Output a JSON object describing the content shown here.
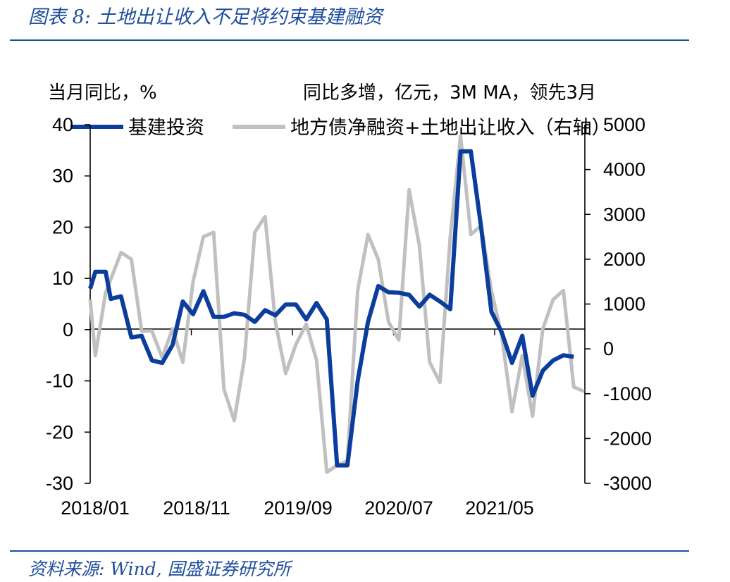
{
  "figure": {
    "title": "图表 8: 土地出让收入不足将约束基建融资",
    "source": "资料来源: Wind, 国盛证券研究所"
  },
  "colors": {
    "brand_blue": "#1f4e9a",
    "series_blue": "#0b3e9c",
    "series_gray": "#c0c0c0"
  },
  "chart_data": {
    "type": "line",
    "x_tick_labels": [
      "2018/01",
      "2018/11",
      "2019/09",
      "2020/07",
      "2021/05"
    ],
    "left_axis": {
      "label": "当月同比，%",
      "ylim": [
        -30,
        40
      ],
      "ticks": [
        "40",
        "30",
        "20",
        "10",
        "0",
        "-10",
        "-20",
        "-30"
      ]
    },
    "right_axis": {
      "label": "同比多增，亿元，3M MA，领先3月",
      "ylim": [
        -3000,
        5000
      ],
      "ticks": [
        "5000",
        "4000",
        "3000",
        "2000",
        "1000",
        "0",
        "-1000",
        "-2000",
        "-3000"
      ]
    },
    "legend_position": "top",
    "grid": false,
    "series": [
      {
        "name": "基建投资",
        "axis": "left",
        "color": "#0b3e9c",
        "points": [
          [
            0,
            8
          ],
          [
            0.5,
            11.3
          ],
          [
            1.5,
            11.3
          ],
          [
            2,
            6
          ],
          [
            3,
            6.5
          ],
          [
            4,
            -1.5
          ],
          [
            5,
            -1.2
          ],
          [
            6,
            -6
          ],
          [
            7,
            -6.5
          ],
          [
            8,
            -3
          ],
          [
            9,
            5.5
          ],
          [
            10,
            3
          ],
          [
            11,
            7.5
          ],
          [
            12,
            2.5
          ],
          [
            13,
            2.5
          ],
          [
            14,
            3.2
          ],
          [
            15,
            2.9
          ],
          [
            16,
            1.5
          ],
          [
            17,
            3.8
          ],
          [
            18,
            2.8
          ],
          [
            19,
            4.9
          ],
          [
            20,
            4.9
          ],
          [
            21,
            2
          ],
          [
            22,
            5.2
          ],
          [
            23,
            2
          ],
          [
            24,
            -26.5
          ],
          [
            25,
            -26.5
          ],
          [
            26,
            -10
          ],
          [
            27,
            1.5
          ],
          [
            28,
            8.5
          ],
          [
            29,
            7.3
          ],
          [
            30,
            7.2
          ],
          [
            31,
            6.8
          ],
          [
            32,
            4.5
          ],
          [
            33,
            6.8
          ],
          [
            34,
            5.5
          ],
          [
            35,
            4
          ],
          [
            36,
            34.8
          ],
          [
            37,
            34.8
          ],
          [
            38,
            20
          ],
          [
            39,
            3.5
          ],
          [
            40,
            -0.5
          ],
          [
            41,
            -6.5
          ],
          [
            42,
            -1.2
          ],
          [
            43,
            -12.9
          ],
          [
            44,
            -8
          ],
          [
            45,
            -6
          ],
          [
            46,
            -5
          ],
          [
            47,
            -5.3
          ]
        ]
      },
      {
        "name": "地方债净融资+土地出让收入（右轴）",
        "axis": "right",
        "color": "#c0c0c0",
        "points": [
          [
            0,
            1100
          ],
          [
            0.5,
            -150
          ],
          [
            1.5,
            1250
          ],
          [
            3,
            2150
          ],
          [
            4,
            2000
          ],
          [
            5,
            400
          ],
          [
            6,
            400
          ],
          [
            7,
            -200
          ],
          [
            8,
            450
          ],
          [
            9,
            -300
          ],
          [
            10,
            1500
          ],
          [
            11,
            2500
          ],
          [
            12,
            2600
          ],
          [
            13,
            -900
          ],
          [
            14,
            -1600
          ],
          [
            15,
            -200
          ],
          [
            16,
            2600
          ],
          [
            17,
            2950
          ],
          [
            18,
            600
          ],
          [
            19,
            -550
          ],
          [
            20,
            100
          ],
          [
            21,
            550
          ],
          [
            22,
            -250
          ],
          [
            23,
            -2750
          ],
          [
            24,
            -2600
          ],
          [
            25,
            -2500
          ],
          [
            26,
            1300
          ],
          [
            27,
            2550
          ],
          [
            28,
            2000
          ],
          [
            29,
            600
          ],
          [
            30,
            200
          ],
          [
            31,
            3550
          ],
          [
            32,
            2300
          ],
          [
            33,
            -300
          ],
          [
            34,
            -750
          ],
          [
            35,
            2500
          ],
          [
            36,
            4750
          ],
          [
            37,
            2550
          ],
          [
            38,
            2750
          ],
          [
            39,
            1300
          ],
          [
            40,
            300
          ],
          [
            41,
            -1400
          ],
          [
            42,
            -150
          ],
          [
            43,
            -1500
          ],
          [
            44,
            450
          ],
          [
            45,
            1100
          ],
          [
            46,
            1300
          ],
          [
            47,
            -850
          ],
          [
            48,
            -950
          ]
        ]
      }
    ]
  }
}
